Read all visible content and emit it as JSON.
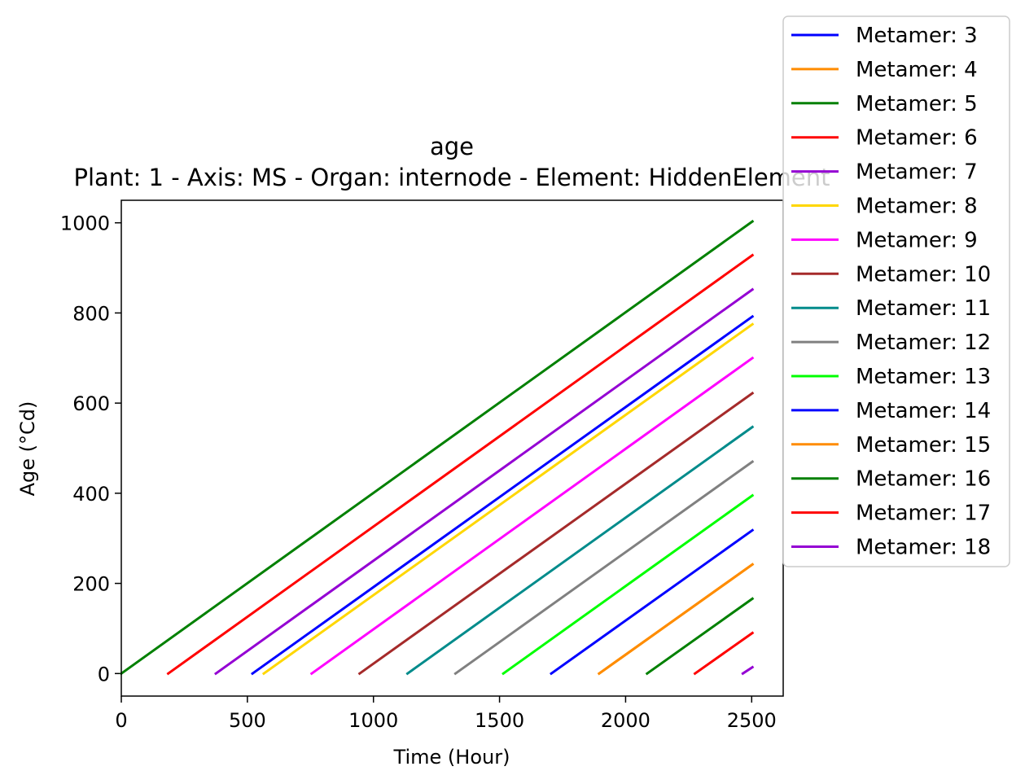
{
  "chart_data": {
    "type": "line",
    "title": "age",
    "subtitle": "Plant: 1 - Axis: MS - Organ: internode - Element: HiddenElement",
    "xlabel": "Time (Hour)",
    "ylabel": "Age (°Cd)",
    "xlim": [
      0,
      2625
    ],
    "ylim": [
      -50,
      1050
    ],
    "xticks": [
      0,
      500,
      1000,
      1500,
      2000,
      2500
    ],
    "yticks": [
      0,
      200,
      400,
      600,
      800,
      1000
    ],
    "xtick_labels": [
      "0",
      "500",
      "1000",
      "1500",
      "2000",
      "2500"
    ],
    "ytick_labels": [
      "0",
      "200",
      "400",
      "600",
      "800",
      "1000"
    ],
    "grid": false,
    "legend_position": "upper-right-outside",
    "series": [
      {
        "name": "Metamer: 3",
        "color": "#0000ff",
        "x": [
          520,
          2503
        ],
        "y": [
          0,
          792
        ]
      },
      {
        "name": "Metamer: 4",
        "color": "#ff8c00",
        "x": [
          1895,
          2503
        ],
        "y": [
          0,
          242
        ]
      },
      {
        "name": "Metamer: 5",
        "color": "#008000",
        "x": [
          0,
          2503
        ],
        "y": [
          0,
          1003
        ]
      },
      {
        "name": "Metamer: 6",
        "color": "#ff0000",
        "x": [
          186,
          2503
        ],
        "y": [
          0,
          928
        ]
      },
      {
        "name": "Metamer: 7",
        "color": "#9400d3",
        "x": [
          375,
          2503
        ],
        "y": [
          0,
          852
        ]
      },
      {
        "name": "Metamer: 8",
        "color": "#ffd700",
        "x": [
          565,
          2503
        ],
        "y": [
          0,
          775
        ]
      },
      {
        "name": "Metamer: 9",
        "color": "#ff00ff",
        "x": [
          755,
          2503
        ],
        "y": [
          0,
          700
        ]
      },
      {
        "name": "Metamer: 10",
        "color": "#a52a2a",
        "x": [
          945,
          2503
        ],
        "y": [
          0,
          622
        ]
      },
      {
        "name": "Metamer: 11",
        "color": "#008b8b",
        "x": [
          1135,
          2503
        ],
        "y": [
          0,
          547
        ]
      },
      {
        "name": "Metamer: 12",
        "color": "#808080",
        "x": [
          1325,
          2503
        ],
        "y": [
          0,
          470
        ]
      },
      {
        "name": "Metamer: 13",
        "color": "#00ff00",
        "x": [
          1515,
          2503
        ],
        "y": [
          0,
          395
        ]
      },
      {
        "name": "Metamer: 14",
        "color": "#0000ff",
        "x": [
          1705,
          2503
        ],
        "y": [
          0,
          318
        ]
      },
      {
        "name": "Metamer: 15",
        "color": "#ff8c00",
        "x": [
          1895,
          2503
        ],
        "y": [
          0,
          242
        ]
      },
      {
        "name": "Metamer: 16",
        "color": "#008000",
        "x": [
          2085,
          2503
        ],
        "y": [
          0,
          166
        ]
      },
      {
        "name": "Metamer: 17",
        "color": "#ff0000",
        "x": [
          2275,
          2503
        ],
        "y": [
          0,
          90
        ]
      },
      {
        "name": "Metamer: 18",
        "color": "#9400d3",
        "x": [
          2465,
          2503
        ],
        "y": [
          0,
          14
        ]
      }
    ]
  }
}
